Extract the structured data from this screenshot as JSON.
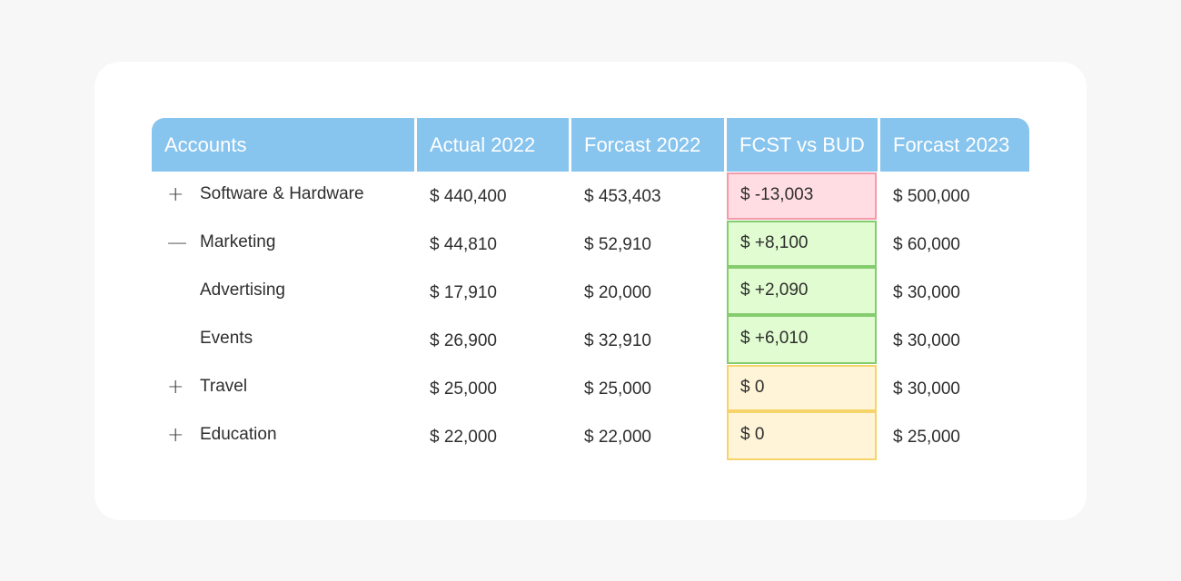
{
  "table": {
    "headers": [
      "Accounts",
      "Actual 2022",
      "Forcast 2022",
      "FCST vs BUD",
      "Forcast 2023"
    ],
    "rows": [
      {
        "expander": "+",
        "account": "Software & Hardware",
        "actual_2022": "$ 440,400",
        "forecast_2022": "$ 453,403",
        "fcst_vs_bud": "$ -13,003",
        "status": "negative",
        "forecast_2023": "$ 500,000"
      },
      {
        "expander": "—",
        "account": "Marketing",
        "actual_2022": "$ 44,810",
        "forecast_2022": "$ 52,910",
        "fcst_vs_bud": "$ +8,100",
        "status": "positive",
        "forecast_2023": "$ 60,000"
      },
      {
        "expander": "",
        "account": "Advertising",
        "actual_2022": "$ 17,910",
        "forecast_2022": "$ 20,000",
        "fcst_vs_bud": "$ +2,090",
        "status": "positive",
        "forecast_2023": "$ 30,000"
      },
      {
        "expander": "",
        "account": "Events",
        "actual_2022": "$ 26,900",
        "forecast_2022": "$ 32,910",
        "fcst_vs_bud": "$ +6,010",
        "status": "positive",
        "forecast_2023": "$ 30,000"
      },
      {
        "expander": "+",
        "account": "Travel",
        "actual_2022": "$ 25,000",
        "forecast_2022": "$ 25,000",
        "fcst_vs_bud": "$ 0",
        "status": "zero",
        "forecast_2023": "$ 30,000"
      },
      {
        "expander": "+",
        "account": "Education",
        "actual_2022": "$ 22,000",
        "forecast_2022": "$ 22,000",
        "fcst_vs_bud": "$ 0",
        "status": "zero",
        "forecast_2023": "$ 25,000"
      }
    ]
  },
  "colors": {
    "header_bg": "#87c4ee",
    "header_text": "#ffffff",
    "negative_bg": "#ffdde2",
    "negative_border": "#f49aaa",
    "positive_bg": "#e0fcd0",
    "positive_border": "#85cc6f",
    "zero_bg": "#fff4d8",
    "zero_border": "#f7d46a"
  }
}
